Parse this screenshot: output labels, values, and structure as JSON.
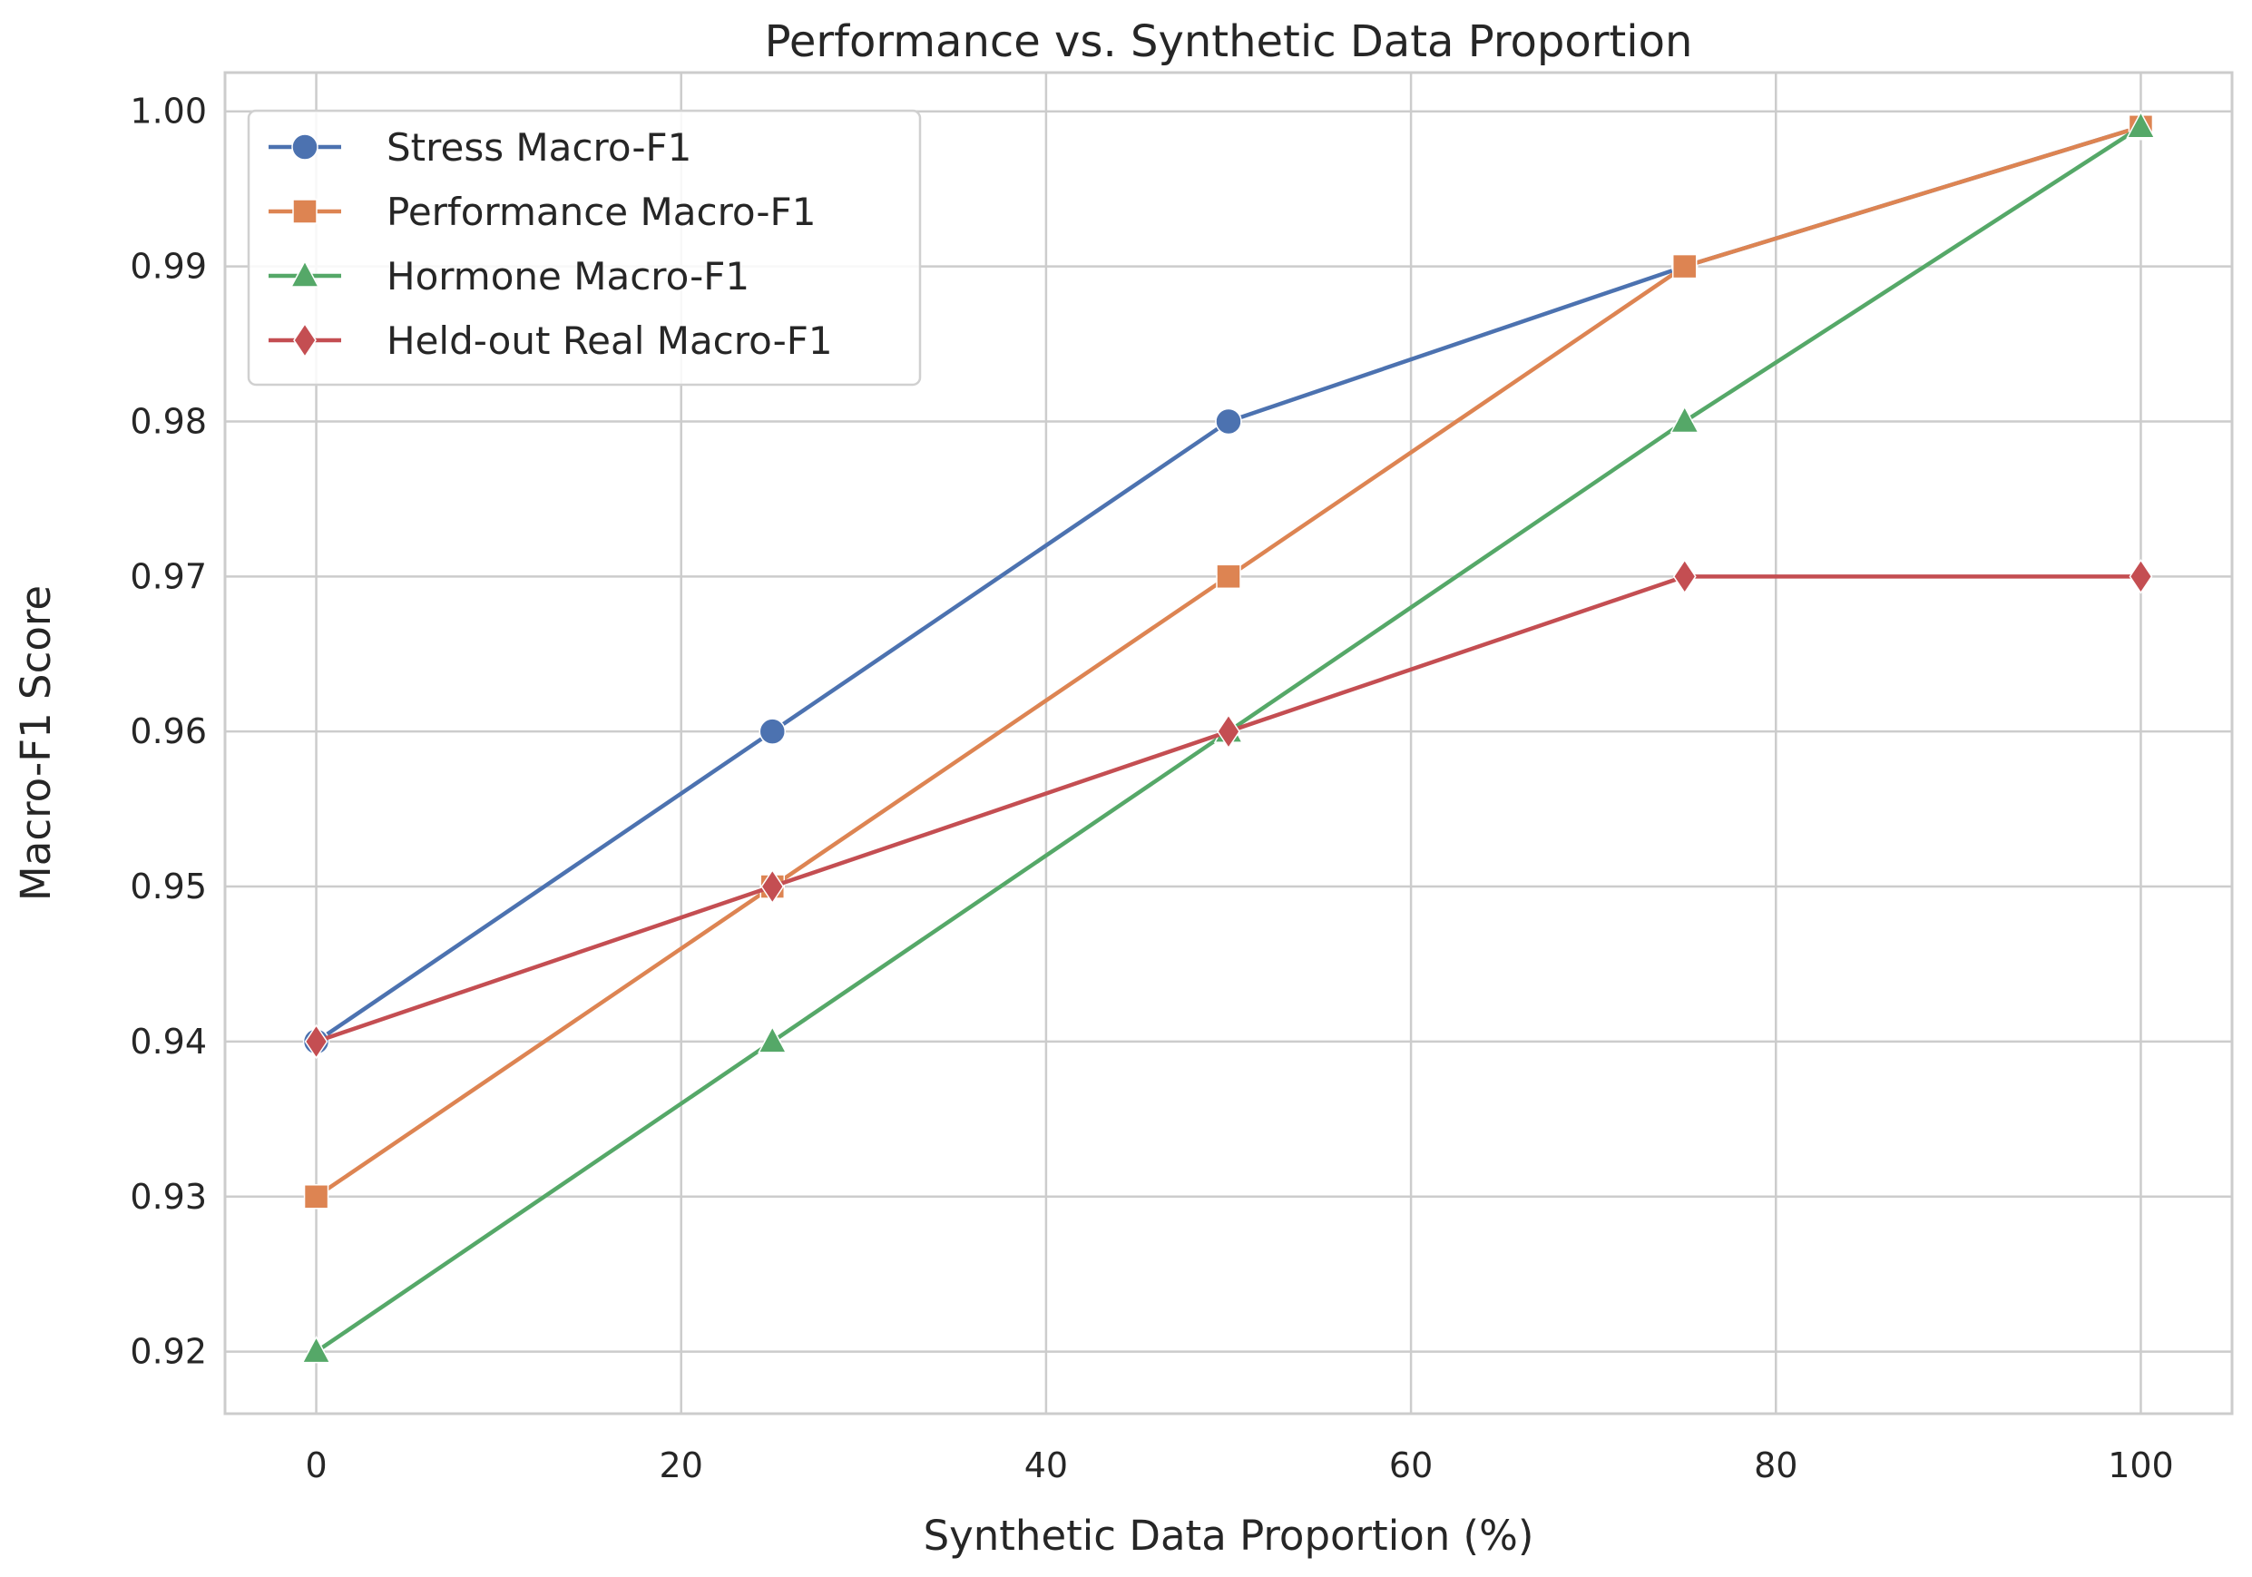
{
  "chart_data": {
    "type": "line",
    "title": "Performance vs. Synthetic Data Proportion",
    "xlabel": "Synthetic Data Proportion (%)",
    "ylabel": "Macro-F1 Score",
    "x": [
      0,
      25,
      50,
      75,
      100
    ],
    "xlim": [
      -5,
      105
    ],
    "ylim": [
      0.916,
      1.0025
    ],
    "xticks": [
      0,
      20,
      40,
      60,
      80,
      100
    ],
    "xtick_labels": [
      "0",
      "20",
      "40",
      "60",
      "80",
      "100"
    ],
    "yticks": [
      0.92,
      0.93,
      0.94,
      0.95,
      0.96,
      0.97,
      0.98,
      0.99,
      1.0
    ],
    "ytick_labels": [
      "0.92",
      "0.93",
      "0.94",
      "0.95",
      "0.96",
      "0.97",
      "0.98",
      "0.99",
      "1.00"
    ],
    "grid": true,
    "legend_position": "top-left",
    "series": [
      {
        "name": "Stress Macro-F1",
        "marker": "circle",
        "color": "#4c72b0",
        "values": [
          0.94,
          0.96,
          0.98,
          0.99,
          0.999
        ]
      },
      {
        "name": "Performance Macro-F1",
        "marker": "square",
        "color": "#dd8452",
        "values": [
          0.93,
          0.95,
          0.97,
          0.99,
          0.999
        ]
      },
      {
        "name": "Hormone Macro-F1",
        "marker": "triangle",
        "color": "#55a868",
        "values": [
          0.92,
          0.94,
          0.96,
          0.98,
          0.999
        ]
      },
      {
        "name": "Held-out Real Macro-F1",
        "marker": "diamond",
        "color": "#c44e52",
        "values": [
          0.94,
          0.95,
          0.96,
          0.97,
          0.97
        ]
      }
    ]
  }
}
